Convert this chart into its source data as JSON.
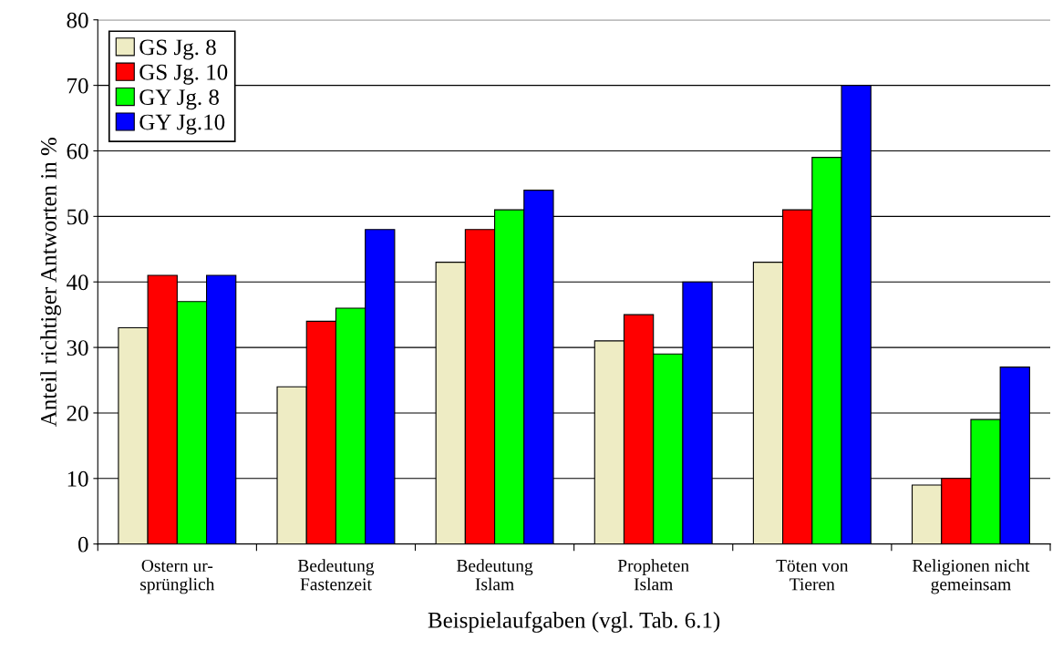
{
  "chart_data": {
    "type": "bar",
    "xlabel": "Beispielaufgaben (vgl. Tab. 6.1)",
    "ylabel": "Anteil richtiger Antworten in %",
    "categories": [
      "Ostern ur-\nsprünglich",
      "Bedeutung\nFastenzeit",
      "Bedeutung\nIslam",
      "Propheten\nIslam",
      "Töten von\nTieren",
      "Religionen nicht\ngemeinsam"
    ],
    "series": [
      {
        "name": "GS Jg. 8",
        "color": "#eeecc4",
        "values": [
          33,
          24,
          43,
          31,
          43,
          9
        ]
      },
      {
        "name": "GS Jg. 10",
        "color": "#ff0000",
        "values": [
          41,
          34,
          48,
          35,
          51,
          10
        ]
      },
      {
        "name": "GY Jg. 8",
        "color": "#00ff00",
        "values": [
          37,
          36,
          51,
          29,
          59,
          19
        ]
      },
      {
        "name": "GY Jg.10",
        "color": "#0000ff",
        "values": [
          41,
          48,
          54,
          40,
          70,
          27
        ]
      }
    ],
    "ylim": [
      0,
      80
    ],
    "yticks": [
      0,
      10,
      20,
      30,
      40,
      50,
      60,
      70,
      80
    ],
    "grid": "y",
    "legend": "top left"
  }
}
